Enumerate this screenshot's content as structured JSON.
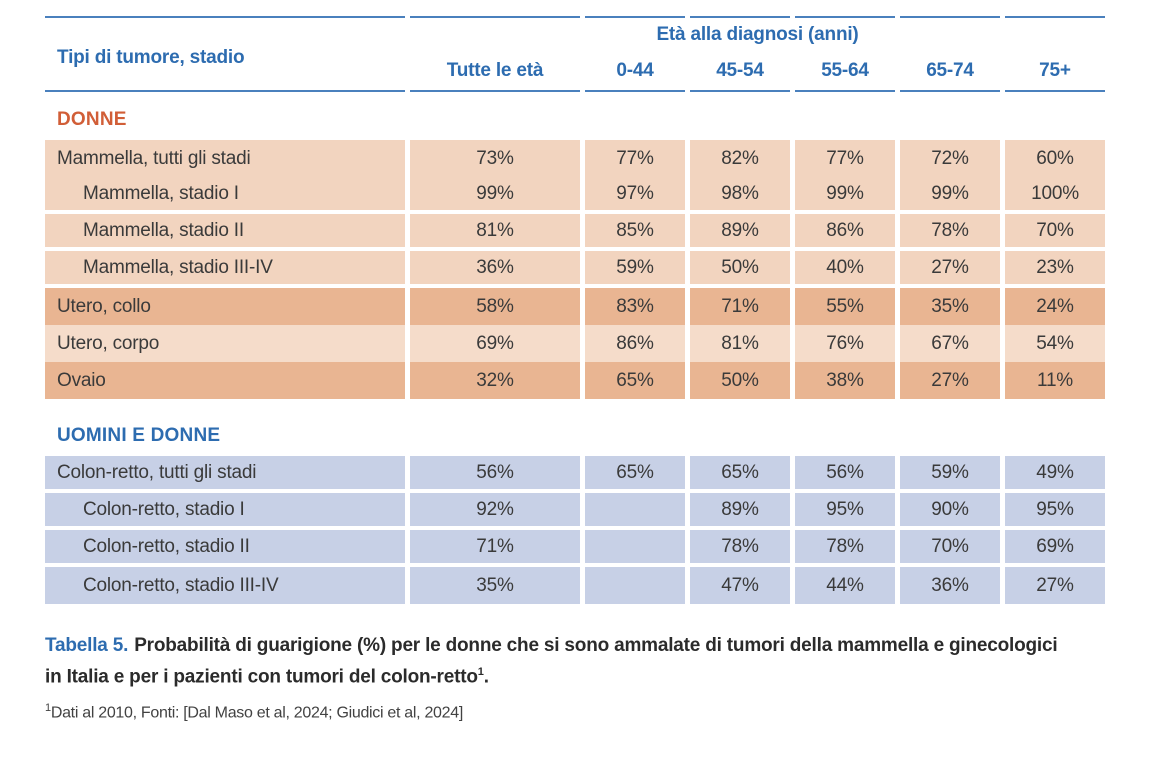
{
  "table": {
    "header": {
      "row_header": "Tipi di tumore, stadio",
      "group_label": "Età alla diagnosi (anni)",
      "columns": [
        "Tutte le età",
        "0-44",
        "45-54",
        "55-64",
        "65-74",
        "75+"
      ]
    },
    "sections": [
      {
        "label": "DONNE",
        "theme": "orange",
        "rows": [
          {
            "label": "Mammella, tutti gli stadi",
            "indent": false,
            "shade": "peach",
            "gap_below": false,
            "values": [
              "73%",
              "77%",
              "82%",
              "77%",
              "72%",
              "60%"
            ]
          },
          {
            "label": "Mammella, stadio I",
            "indent": true,
            "shade": "peach",
            "gap_below": true,
            "values": [
              "99%",
              "97%",
              "98%",
              "99%",
              "99%",
              "100%"
            ]
          },
          {
            "label": "Mammella, stadio II",
            "indent": true,
            "shade": "peach",
            "gap_below": true,
            "values": [
              "81%",
              "85%",
              "89%",
              "86%",
              "78%",
              "70%"
            ]
          },
          {
            "label": "Mammella, stadio III-IV",
            "indent": true,
            "shade": "peach",
            "gap_below": true,
            "values": [
              "36%",
              "59%",
              "50%",
              "40%",
              "27%",
              "23%"
            ]
          },
          {
            "label": "Utero, collo",
            "indent": false,
            "shade": "peach-dark",
            "gap_below": false,
            "values": [
              "58%",
              "83%",
              "71%",
              "55%",
              "35%",
              "24%"
            ]
          },
          {
            "label": "Utero, corpo",
            "indent": false,
            "shade": "peach-light",
            "gap_below": false,
            "values": [
              "69%",
              "86%",
              "81%",
              "76%",
              "67%",
              "54%"
            ]
          },
          {
            "label": "Ovaio",
            "indent": false,
            "shade": "peach-dark",
            "gap_below": false,
            "values": [
              "32%",
              "65%",
              "50%",
              "38%",
              "27%",
              "11%"
            ]
          }
        ]
      },
      {
        "label": "UOMINI E DONNE",
        "theme": "blue",
        "rows": [
          {
            "label": "Colon-retto, tutti gli stadi",
            "indent": false,
            "shade": "blue",
            "gap_below": true,
            "values": [
              "56%",
              "65%",
              "65%",
              "56%",
              "59%",
              "49%"
            ]
          },
          {
            "label": "Colon-retto, stadio I",
            "indent": true,
            "shade": "blue",
            "gap_below": true,
            "values": [
              "92%",
              "",
              "89%",
              "95%",
              "90%",
              "95%"
            ]
          },
          {
            "label": "Colon-retto, stadio II",
            "indent": true,
            "shade": "blue",
            "gap_below": true,
            "values": [
              "71%",
              "",
              "78%",
              "78%",
              "70%",
              "69%"
            ]
          },
          {
            "label": "Colon-retto, stadio III-IV",
            "indent": true,
            "shade": "blue",
            "gap_below": false,
            "values": [
              "35%",
              "",
              "47%",
              "44%",
              "36%",
              "27%"
            ]
          }
        ]
      }
    ]
  },
  "caption": {
    "prefix": "Tabella 5.",
    "text": "Probabilità di guarigione (%) per le donne che si sono ammalate di tumori della mammella e ginecologici in Italia e per i pazienti con tumori del colon-retto",
    "footnote_ref": "1",
    "suffix": "."
  },
  "footnote": {
    "ref": "1",
    "text": "Dati al 2010, Fonti: [Dal Maso et al, 2024; Giudici et al, 2024]"
  },
  "colors": {
    "header_blue": "#2d6cb0",
    "rule_blue": "#4a80bd",
    "section_orange": "#d15e37",
    "row_peach": "#f2d4bf",
    "row_peach_light": "#f5dcca",
    "row_peach_dark": "#e9b592",
    "row_blue": "#c7d0e6",
    "text_dark": "#3a3a3a"
  }
}
